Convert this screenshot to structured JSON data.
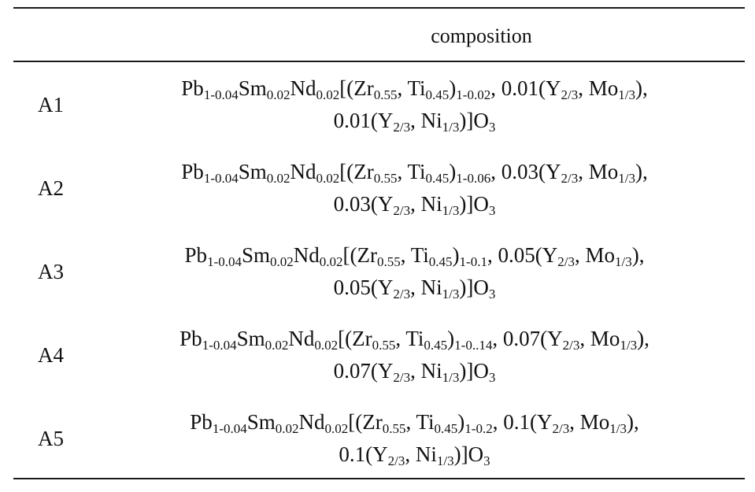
{
  "table": {
    "header": {
      "id": "",
      "composition": "composition"
    },
    "rows": [
      {
        "id": "A1",
        "line1": "",
        "line2": ""
      },
      {
        "id": "A2",
        "line1": "",
        "line2": ""
      },
      {
        "id": "A3",
        "line1": "",
        "line2": ""
      },
      {
        "id": "A4",
        "line1": "",
        "line2": ""
      },
      {
        "id": "A5",
        "line1": "",
        "line2": ""
      }
    ],
    "composition_text": [
      {
        "line1": "Pb1-0.04Sm0.02Nd0.02[(Zr0.55, Ti0.45)1-0.02, 0.01(Y2/3, Mo1/3),",
        "line2": "0.01(Y2/3, Ni1/3)]O3",
        "parts": {
          "pb_sub": "1-0.04",
          "sm_sub": "0.02",
          "nd_sub": "0.02",
          "zr_sub": "0.55",
          "ti_sub": "0.45",
          "zt_sub": "1-0.02",
          "c1": "0.01",
          "y1_sub": "2/3",
          "mo_sub": "1/3",
          "c2": "0.01",
          "y2_sub": "2/3",
          "ni_sub": "1/3",
          "o_sub": "3"
        }
      },
      {
        "line1": "Pb1-0.04Sm0.02Nd0.02[(Zr0.55, Ti0.45)1-0.06, 0.03(Y2/3, Mo1/3),",
        "line2": "0.03(Y2/3, Ni1/3)]O3",
        "parts": {
          "pb_sub": "1-0.04",
          "sm_sub": "0.02",
          "nd_sub": "0.02",
          "zr_sub": "0.55",
          "ti_sub": "0.45",
          "zt_sub": "1-0.06",
          "c1": "0.03",
          "y1_sub": "2/3",
          "mo_sub": "1/3",
          "c2": "0.03",
          "y2_sub": "2/3",
          "ni_sub": "1/3",
          "o_sub": "3"
        }
      },
      {
        "line1": "Pb1-0.04Sm0.02Nd0.02[(Zr0.55, Ti0.45)1-0.1, 0.05(Y2/3, Mo1/3),",
        "line2": "0.05(Y2/3, Ni1/3)]O3",
        "parts": {
          "pb_sub": "1-0.04",
          "sm_sub": "0.02",
          "nd_sub": "0.02",
          "zr_sub": "0.55",
          "ti_sub": "0.45",
          "zt_sub": "1-0.1",
          "c1": "0.05",
          "y1_sub": "2/3",
          "mo_sub": "1/3",
          "c2": "0.05",
          "y2_sub": "2/3",
          "ni_sub": "1/3",
          "o_sub": "3"
        }
      },
      {
        "line1": "Pb1-0.04Sm0.02Nd0.02[(Zr0.55, Ti0.45)1-0..14, 0.07(Y2/3, Mo1/3),",
        "line2": "0.07(Y2/3, Ni1/3)]O3",
        "parts": {
          "pb_sub": "1-0.04",
          "sm_sub": "0.02",
          "nd_sub": "0.02",
          "zr_sub": "0.55",
          "ti_sub": "0.45",
          "zt_sub": "1-0..14",
          "c1": "0.07",
          "y1_sub": "2/3",
          "mo_sub": "1/3",
          "c2": "0.07",
          "y2_sub": "2/3",
          "ni_sub": "1/3",
          "o_sub": "3"
        }
      },
      {
        "line1": "Pb1-0.04Sm0.02Nd0.02[(Zr0.55, Ti0.45)1-0.2, 0.1(Y2/3, Mo1/3),",
        "line2": "0.1(Y2/3, Ni1/3)]O3",
        "parts": {
          "pb_sub": "1-0.04",
          "sm_sub": "0.02",
          "nd_sub": "0.02",
          "zr_sub": "0.55",
          "ti_sub": "0.45",
          "zt_sub": "1-0.2",
          "c1": "0.1",
          "y1_sub": "2/3",
          "mo_sub": "1/3",
          "c2": "0.1",
          "y2_sub": "2/3",
          "ni_sub": "1/3",
          "o_sub": "3"
        }
      }
    ]
  }
}
